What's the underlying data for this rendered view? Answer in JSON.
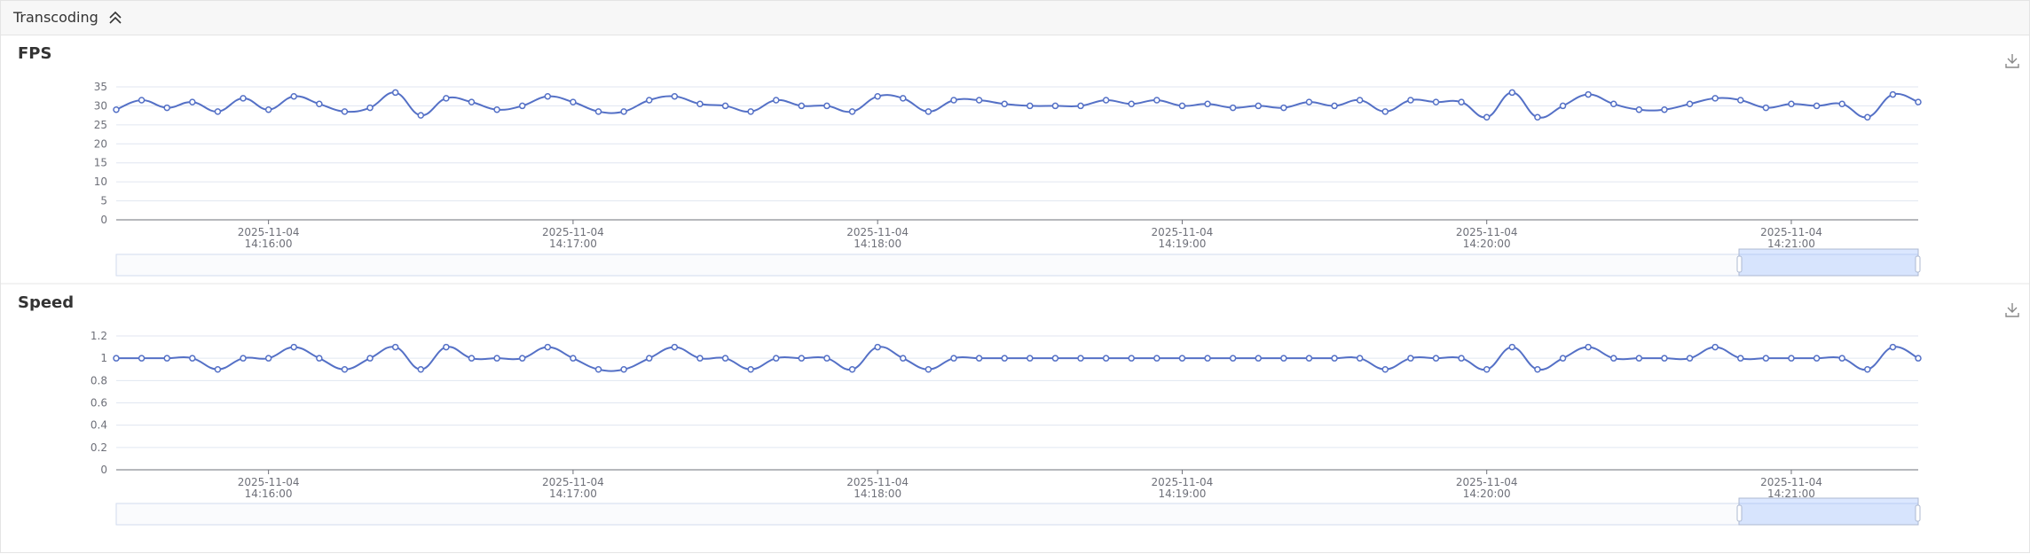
{
  "section": {
    "title": "Transcoding"
  },
  "chart_data": [
    {
      "type": "line",
      "title": "FPS",
      "color": "#5470c6",
      "grid": true,
      "x": [
        "2025-11-04 14:15:30",
        "2025-11-04 14:15:35",
        "2025-11-04 14:15:40",
        "2025-11-04 14:15:45",
        "2025-11-04 14:15:50",
        "2025-11-04 14:15:55",
        "2025-11-04 14:16:00",
        "2025-11-04 14:16:05",
        "2025-11-04 14:16:10",
        "2025-11-04 14:16:15",
        "2025-11-04 14:16:20",
        "2025-11-04 14:16:25",
        "2025-11-04 14:16:30",
        "2025-11-04 14:16:35",
        "2025-11-04 14:16:40",
        "2025-11-04 14:16:45",
        "2025-11-04 14:16:50",
        "2025-11-04 14:16:55",
        "2025-11-04 14:17:00",
        "2025-11-04 14:17:05",
        "2025-11-04 14:17:10",
        "2025-11-04 14:17:15",
        "2025-11-04 14:17:20",
        "2025-11-04 14:17:25",
        "2025-11-04 14:17:30",
        "2025-11-04 14:17:35",
        "2025-11-04 14:17:40",
        "2025-11-04 14:17:45",
        "2025-11-04 14:17:50",
        "2025-11-04 14:17:55",
        "2025-11-04 14:18:00",
        "2025-11-04 14:18:05",
        "2025-11-04 14:18:10",
        "2025-11-04 14:18:15",
        "2025-11-04 14:18:20",
        "2025-11-04 14:18:25",
        "2025-11-04 14:18:30",
        "2025-11-04 14:18:35",
        "2025-11-04 14:18:40",
        "2025-11-04 14:18:45",
        "2025-11-04 14:18:50",
        "2025-11-04 14:18:55",
        "2025-11-04 14:19:00",
        "2025-11-04 14:19:05",
        "2025-11-04 14:19:10",
        "2025-11-04 14:19:15",
        "2025-11-04 14:19:20",
        "2025-11-04 14:19:25",
        "2025-11-04 14:19:30",
        "2025-11-04 14:19:35",
        "2025-11-04 14:19:40",
        "2025-11-04 14:19:45",
        "2025-11-04 14:19:50",
        "2025-11-04 14:19:55",
        "2025-11-04 14:20:00",
        "2025-11-04 14:20:05",
        "2025-11-04 14:20:10",
        "2025-11-04 14:20:15",
        "2025-11-04 14:20:20",
        "2025-11-04 14:20:25",
        "2025-11-04 14:20:30",
        "2025-11-04 14:20:35",
        "2025-11-04 14:20:40",
        "2025-11-04 14:20:45",
        "2025-11-04 14:20:50",
        "2025-11-04 14:20:55",
        "2025-11-04 14:21:00",
        "2025-11-04 14:21:05",
        "2025-11-04 14:21:10",
        "2025-11-04 14:21:15",
        "2025-11-04 14:21:20",
        "2025-11-04 14:21:25"
      ],
      "values": [
        29,
        31.5,
        29.5,
        31,
        28.5,
        32,
        29,
        32.5,
        30.5,
        28.5,
        29.5,
        33.5,
        27.5,
        32,
        31,
        29,
        30,
        32.5,
        31,
        28.5,
        28.5,
        31.5,
        32.5,
        30.5,
        30,
        28.5,
        31.5,
        30,
        30,
        28.5,
        32.5,
        32,
        28.5,
        31.5,
        31.5,
        30.5,
        30,
        30,
        30,
        31.5,
        30.5,
        31.5,
        30,
        30.5,
        29.5,
        30,
        29.5,
        31,
        30,
        31.5,
        28.5,
        31.5,
        31,
        31,
        27,
        33.5,
        27,
        30,
        33,
        30.5,
        29,
        29,
        30.5,
        32,
        31.5,
        29.5,
        30.5,
        30,
        30.5,
        27,
        33,
        31
      ],
      "xlim": [
        "2025-11-04 14:15:30",
        "2025-11-04 14:21:25"
      ],
      "xticks": [
        "2025-11-04 14:16:00",
        "2025-11-04 14:17:00",
        "2025-11-04 14:18:00",
        "2025-11-04 14:19:00",
        "2025-11-04 14:20:00",
        "2025-11-04 14:21:00"
      ],
      "ylim": [
        0,
        35
      ],
      "yticks": [
        0,
        5,
        10,
        15,
        20,
        25,
        30,
        35
      ]
    },
    {
      "type": "line",
      "title": "Speed",
      "color": "#5470c6",
      "grid": true,
      "x": [
        "2025-11-04 14:15:30",
        "2025-11-04 14:15:35",
        "2025-11-04 14:15:40",
        "2025-11-04 14:15:45",
        "2025-11-04 14:15:50",
        "2025-11-04 14:15:55",
        "2025-11-04 14:16:00",
        "2025-11-04 14:16:05",
        "2025-11-04 14:16:10",
        "2025-11-04 14:16:15",
        "2025-11-04 14:16:20",
        "2025-11-04 14:16:25",
        "2025-11-04 14:16:30",
        "2025-11-04 14:16:35",
        "2025-11-04 14:16:40",
        "2025-11-04 14:16:45",
        "2025-11-04 14:16:50",
        "2025-11-04 14:16:55",
        "2025-11-04 14:17:00",
        "2025-11-04 14:17:05",
        "2025-11-04 14:17:10",
        "2025-11-04 14:17:15",
        "2025-11-04 14:17:20",
        "2025-11-04 14:17:25",
        "2025-11-04 14:17:30",
        "2025-11-04 14:17:35",
        "2025-11-04 14:17:40",
        "2025-11-04 14:17:45",
        "2025-11-04 14:17:50",
        "2025-11-04 14:17:55",
        "2025-11-04 14:18:00",
        "2025-11-04 14:18:05",
        "2025-11-04 14:18:10",
        "2025-11-04 14:18:15",
        "2025-11-04 14:18:20",
        "2025-11-04 14:18:25",
        "2025-11-04 14:18:30",
        "2025-11-04 14:18:35",
        "2025-11-04 14:18:40",
        "2025-11-04 14:18:45",
        "2025-11-04 14:18:50",
        "2025-11-04 14:18:55",
        "2025-11-04 14:19:00",
        "2025-11-04 14:19:05",
        "2025-11-04 14:19:10",
        "2025-11-04 14:19:15",
        "2025-11-04 14:19:20",
        "2025-11-04 14:19:25",
        "2025-11-04 14:19:30",
        "2025-11-04 14:19:35",
        "2025-11-04 14:19:40",
        "2025-11-04 14:19:45",
        "2025-11-04 14:19:50",
        "2025-11-04 14:19:55",
        "2025-11-04 14:20:00",
        "2025-11-04 14:20:05",
        "2025-11-04 14:20:10",
        "2025-11-04 14:20:15",
        "2025-11-04 14:20:20",
        "2025-11-04 14:20:25",
        "2025-11-04 14:20:30",
        "2025-11-04 14:20:35",
        "2025-11-04 14:20:40",
        "2025-11-04 14:20:45",
        "2025-11-04 14:20:50",
        "2025-11-04 14:20:55",
        "2025-11-04 14:21:00",
        "2025-11-04 14:21:05",
        "2025-11-04 14:21:10",
        "2025-11-04 14:21:15",
        "2025-11-04 14:21:20",
        "2025-11-04 14:21:25"
      ],
      "values": [
        1,
        1,
        1,
        1,
        0.9,
        1,
        1,
        1.1,
        1,
        0.9,
        1,
        1.1,
        0.9,
        1.1,
        1,
        1,
        1,
        1.1,
        1,
        0.9,
        0.9,
        1,
        1.1,
        1,
        1,
        0.9,
        1,
        1,
        1,
        0.9,
        1.1,
        1,
        0.9,
        1,
        1,
        1,
        1,
        1,
        1,
        1,
        1,
        1,
        1,
        1,
        1,
        1,
        1,
        1,
        1,
        1,
        0.9,
        1,
        1,
        1,
        0.9,
        1.1,
        0.9,
        1,
        1.1,
        1,
        1,
        1,
        1,
        1.1,
        1,
        1,
        1,
        1,
        1,
        0.9,
        1.1,
        1
      ],
      "xlim": [
        "2025-11-04 14:15:30",
        "2025-11-04 14:21:25"
      ],
      "xticks": [
        "2025-11-04 14:16:00",
        "2025-11-04 14:17:00",
        "2025-11-04 14:18:00",
        "2025-11-04 14:19:00",
        "2025-11-04 14:20:00",
        "2025-11-04 14:21:00"
      ],
      "ylim": [
        0,
        1.2
      ],
      "yticks": [
        0,
        0.2,
        0.4,
        0.6,
        0.8,
        1,
        1.2
      ]
    }
  ]
}
